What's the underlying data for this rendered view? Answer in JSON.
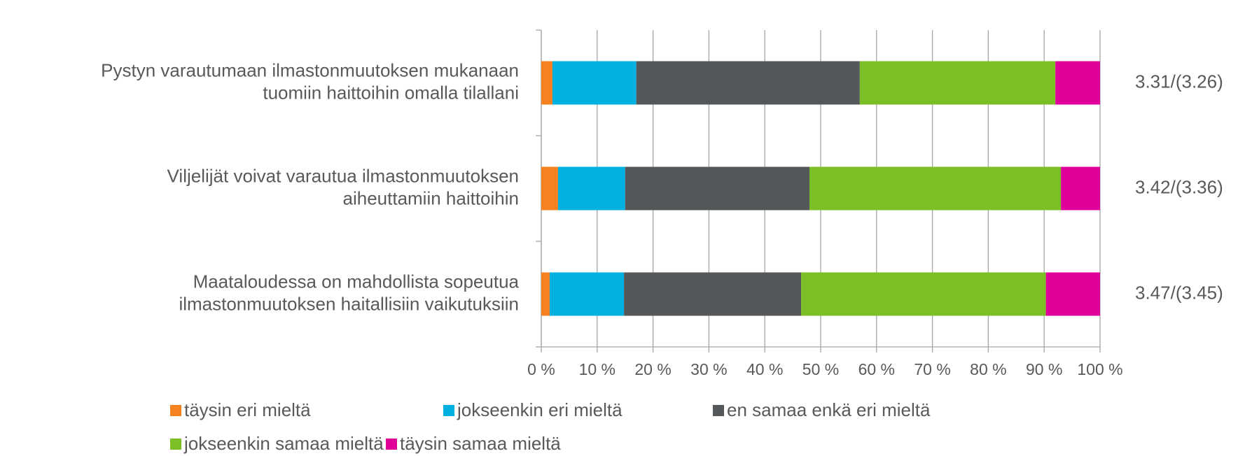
{
  "chart_data": {
    "type": "stacked_barh",
    "categories": [
      [
        "Pystyn varautumaan ilmastonmuutoksen mukanaan",
        "tuomiin haittoihin omalla tilallani"
      ],
      [
        "Viljelijät voivat varautua ilmastonmuutoksen",
        "aiheuttamiin haittoihin"
      ],
      [
        "Maataloudessa on mahdollista sopeutua",
        "ilmastonmuutoksen haitallisiin vaikutuksiin"
      ]
    ],
    "series": [
      {
        "name": "täysin eri mieltä",
        "color": "#f5821f",
        "values": [
          2,
          3,
          1.5
        ]
      },
      {
        "name": "jokseenkin eri mieltä",
        "color": "#00b0e0",
        "values": [
          15,
          12,
          13.3
        ]
      },
      {
        "name": "en samaa enkä eri mieltä",
        "color": "#55585a",
        "values": [
          40,
          33,
          31.7
        ]
      },
      {
        "name": "jokseenkin samaa mieltä",
        "color": "#7abf26",
        "values": [
          35,
          45,
          43.8
        ]
      },
      {
        "name": "täysin samaa mieltä",
        "color": "#e0009a",
        "values": [
          8,
          7,
          9.7
        ]
      }
    ],
    "annotations": [
      "3.31/(3.26)",
      "3.42/(3.36)",
      "3.47/(3.45)"
    ],
    "xlim": [
      0,
      100
    ],
    "xticks": [
      {
        "value": 0,
        "label": "0 %"
      },
      {
        "value": 10,
        "label": "10 %"
      },
      {
        "value": 20,
        "label": "20 %"
      },
      {
        "value": 30,
        "label": "30 %"
      },
      {
        "value": 40,
        "label": "40 %"
      },
      {
        "value": 50,
        "label": "50 %"
      },
      {
        "value": 60,
        "label": "60 %"
      },
      {
        "value": 70,
        "label": "70 %"
      },
      {
        "value": 80,
        "label": "80 %"
      },
      {
        "value": 90,
        "label": "90 %"
      },
      {
        "value": 100,
        "label": "100 %"
      }
    ],
    "grid": true
  }
}
